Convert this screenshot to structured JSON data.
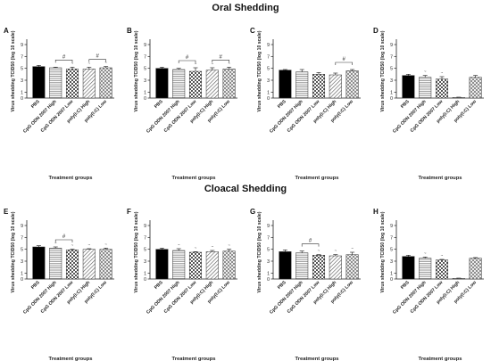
{
  "sections": [
    {
      "title": "Oral Shedding"
    },
    {
      "title": "Cloacal Shedding"
    }
  ],
  "colors": {
    "pbs": "#000000",
    "cpg_high": "#e8e8e8",
    "pattern_ink": "#444444",
    "axis": "#222222"
  },
  "chart_data": [
    {
      "panel": "A",
      "type": "bar",
      "categories": [
        "PBS",
        "CpG ODN 2007 High",
        "CpG ODN 2007 Low",
        "poly(I:C) High",
        "poly(I:C) Low"
      ],
      "values": [
        5.3,
        5.1,
        4.9,
        4.9,
        5.1
      ],
      "errors": [
        0.2,
        0.1,
        0.3,
        0.3,
        0.2
      ],
      "annotations": [
        "",
        "",
        "~",
        "~",
        "~"
      ],
      "sig_brackets": [
        {
          "from": 1,
          "to": 2,
          "label": "#"
        },
        {
          "from": 3,
          "to": 4,
          "label": "#"
        }
      ],
      "xlabel": "Treatment groups",
      "ylabel": "Virus shedding TCID50 (log 10 scale)",
      "yticks": [
        0,
        1,
        3,
        5,
        7,
        9
      ],
      "ylim": [
        0,
        9
      ]
    },
    {
      "panel": "B",
      "type": "bar",
      "categories": [
        "PBS",
        "CpG ODN 2007 High",
        "CpG ODN 2007 Low",
        "poly(I:C) High",
        "poly(I:C) Low"
      ],
      "values": [
        5.0,
        4.8,
        4.5,
        4.7,
        4.9
      ],
      "errors": [
        0.2,
        0.2,
        0.6,
        0.4,
        0.3
      ],
      "annotations": [
        "",
        "",
        "~",
        "~",
        "~"
      ],
      "sig_brackets": [
        {
          "from": 1,
          "to": 2,
          "label": "#"
        },
        {
          "from": 3,
          "to": 4,
          "label": "#"
        }
      ],
      "xlabel": "Treatment groups",
      "ylabel": "Virus shedding TCID50 (log 10 scale)",
      "yticks": [
        0,
        1,
        3,
        5,
        7,
        9
      ],
      "ylim": [
        0,
        9
      ]
    },
    {
      "panel": "C",
      "type": "bar",
      "categories": [
        "PBS",
        "CpG ODN 2007 High",
        "CpG ODN 2007 Low",
        "poly(I:C) High",
        "poly(I:C) Low"
      ],
      "values": [
        4.7,
        4.4,
        4.0,
        3.9,
        4.6
      ],
      "errors": [
        0.1,
        0.4,
        0.3,
        0.3,
        0.2
      ],
      "annotations": [
        "",
        "",
        "",
        "",
        ""
      ],
      "sig_brackets": [
        {
          "from": 3,
          "to": 4,
          "label": "#"
        }
      ],
      "xlabel": "Treatment groups",
      "ylabel": "Virus shedding TCID50 (log 10 scale)",
      "yticks": [
        0,
        1,
        3,
        5,
        7,
        9
      ],
      "ylim": [
        0,
        9
      ]
    },
    {
      "panel": "D",
      "type": "bar",
      "categories": [
        "PBS",
        "CpG ODN 2007 High",
        "CpG ODN 2007 Low",
        "poly(I:C) High",
        "poly(I:C) Low"
      ],
      "values": [
        3.8,
        3.5,
        3.2,
        0.1,
        3.5
      ],
      "errors": [
        0.2,
        0.3,
        0.4,
        0.05,
        0.3
      ],
      "annotations": [
        "",
        "~",
        "~",
        "",
        ""
      ],
      "sig_brackets": [],
      "xlabel": "Treatment groups",
      "ylabel": "Virus shedding TCID50 (log 10 scale)",
      "yticks": [
        0,
        1,
        3,
        5,
        7,
        9
      ],
      "ylim": [
        0,
        9
      ]
    },
    {
      "panel": "E",
      "type": "bar",
      "categories": [
        "PBS",
        "CpG ODN 2007 High",
        "CpG ODN 2007 Low",
        "poly(I:C) High",
        "poly(I:C) Low"
      ],
      "values": [
        5.4,
        5.2,
        4.9,
        5.0,
        5.0
      ],
      "errors": [
        0.2,
        0.2,
        0.1,
        0.1,
        0.2
      ],
      "annotations": [
        "",
        "~",
        "~",
        "~",
        "~"
      ],
      "sig_brackets": [
        {
          "from": 1,
          "to": 2,
          "label": "#"
        }
      ],
      "xlabel": "Treatment groups",
      "ylabel": "Virus shedding TCID50 (log 10 scale)",
      "yticks": [
        0,
        1,
        3,
        5,
        7,
        9
      ],
      "ylim": [
        0,
        9
      ]
    },
    {
      "panel": "F",
      "type": "bar",
      "categories": [
        "PBS",
        "CpG ODN 2007 High",
        "CpG ODN 2007 Low",
        "poly(I:C) High",
        "poly(I:C) Low"
      ],
      "values": [
        5.0,
        4.8,
        4.5,
        4.6,
        4.7
      ],
      "errors": [
        0.2,
        0.3,
        0.1,
        0.2,
        0.3
      ],
      "annotations": [
        "",
        "~",
        "~",
        "~",
        "~"
      ],
      "sig_brackets": [],
      "xlabel": "Treatment groups",
      "ylabel": "Virus shedding TCID50 (log 10 scale)",
      "yticks": [
        0,
        1,
        3,
        5,
        7,
        9
      ],
      "ylim": [
        0,
        9
      ]
    },
    {
      "panel": "G",
      "type": "bar",
      "categories": [
        "PBS",
        "CpG ODN 2007 High",
        "CpG ODN 2007 Low",
        "poly(I:C) High",
        "poly(I:C) Low"
      ],
      "values": [
        4.6,
        4.4,
        4.0,
        3.9,
        4.1
      ],
      "errors": [
        0.3,
        0.3,
        0.1,
        0.2,
        0.4
      ],
      "annotations": [
        "",
        "",
        "~",
        "~",
        "~"
      ],
      "sig_brackets": [
        {
          "from": 1,
          "to": 2,
          "label": "#"
        }
      ],
      "xlabel": "Treatment groups",
      "ylabel": "Virus shedding TCID50 (log 10 scale)",
      "yticks": [
        0,
        1,
        3,
        5,
        7,
        9
      ],
      "ylim": [
        0,
        9
      ]
    },
    {
      "panel": "H",
      "type": "bar",
      "categories": [
        "PBS",
        "CpG ODN 2007 High",
        "CpG ODN 2007 Low",
        "poly(I:C) High",
        "poly(I:C) Low"
      ],
      "values": [
        3.8,
        3.5,
        3.2,
        0.1,
        3.5
      ],
      "errors": [
        0.2,
        0.2,
        0.1,
        0.05,
        0.1
      ],
      "annotations": [
        "",
        "~",
        "~",
        "",
        ""
      ],
      "sig_brackets": [],
      "xlabel": "Treatment groups",
      "ylabel": "Virus shedding TCID50 (log 10 scale)",
      "yticks": [
        0,
        1,
        3,
        5,
        7,
        9
      ],
      "ylim": [
        0,
        9
      ]
    }
  ]
}
